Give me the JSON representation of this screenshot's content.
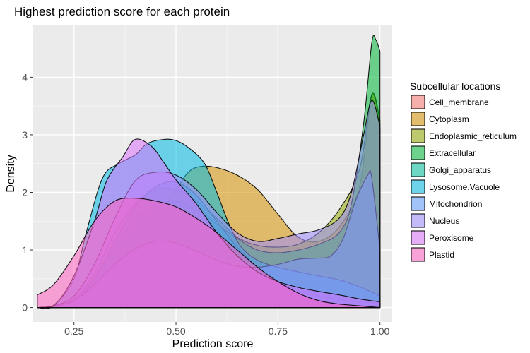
{
  "chart_data": {
    "type": "area",
    "subtype": "density",
    "title": "Highest prediction score for each protein",
    "xlabel": "Prediction score",
    "ylabel": "Density",
    "xlim": [
      0.15,
      1.03
    ],
    "ylim": [
      -0.25,
      4.9
    ],
    "x_ticks": [
      0.25,
      0.5,
      0.75,
      1.0
    ],
    "x_tick_labels": [
      "0.25",
      "0.50",
      "0.75",
      "1.00"
    ],
    "y_ticks": [
      0,
      1,
      2,
      3,
      4
    ],
    "y_tick_labels": [
      "0",
      "1",
      "2",
      "3",
      "4"
    ],
    "legend_title": "Subcellular locations",
    "legend_position": "right",
    "fill_opacity": 0.55,
    "series": [
      {
        "name": "Cell_membrane",
        "color": "#F8766D",
        "x": [
          0.16,
          0.2,
          0.25,
          0.3,
          0.35,
          0.4,
          0.45,
          0.5,
          0.55,
          0.6,
          0.65,
          0.7,
          0.75,
          0.8,
          0.85,
          0.9,
          0.95,
          1.0
        ],
        "y": [
          0.0,
          0.02,
          0.15,
          0.55,
          0.95,
          1.2,
          1.3,
          1.32,
          1.3,
          1.18,
          1.0,
          0.78,
          0.55,
          0.36,
          0.2,
          0.1,
          0.05,
          0.02
        ]
      },
      {
        "name": "Cytoplasm",
        "color": "#D39200",
        "x": [
          0.16,
          0.2,
          0.25,
          0.3,
          0.35,
          0.4,
          0.45,
          0.5,
          0.53,
          0.56,
          0.6,
          0.65,
          0.7,
          0.75,
          0.8,
          0.85,
          0.9,
          0.95,
          0.98,
          1.0
        ],
        "y": [
          0.0,
          0.02,
          0.1,
          0.3,
          0.65,
          1.1,
          1.55,
          2.05,
          2.35,
          2.45,
          2.43,
          2.3,
          2.05,
          1.62,
          1.22,
          1.15,
          1.4,
          2.1,
          3.68,
          3.1
        ]
      },
      {
        "name": "Endoplasmic_reticulum",
        "color": "#93AA00",
        "x": [
          0.16,
          0.2,
          0.25,
          0.3,
          0.35,
          0.4,
          0.45,
          0.5,
          0.55,
          0.6,
          0.65,
          0.7,
          0.75,
          0.8,
          0.85,
          0.9,
          0.95,
          0.98,
          1.0
        ],
        "y": [
          0.0,
          0.02,
          0.15,
          0.6,
          1.3,
          1.8,
          2.05,
          2.05,
          1.85,
          1.55,
          1.22,
          1.08,
          1.05,
          1.1,
          1.3,
          1.7,
          2.4,
          3.7,
          3.25
        ]
      },
      {
        "name": "Extracellular",
        "color": "#00BA38",
        "x": [
          0.16,
          0.2,
          0.25,
          0.3,
          0.35,
          0.4,
          0.45,
          0.5,
          0.55,
          0.6,
          0.65,
          0.7,
          0.75,
          0.8,
          0.85,
          0.9,
          0.93,
          0.96,
          0.98,
          0.99,
          1.0
        ],
        "y": [
          0.0,
          0.02,
          0.12,
          0.5,
          1.05,
          1.55,
          1.8,
          1.85,
          1.7,
          1.45,
          1.2,
          1.0,
          0.95,
          1.0,
          1.1,
          1.3,
          1.8,
          3.2,
          4.6,
          4.65,
          4.45
        ]
      },
      {
        "name": "Golgi_apparatus",
        "color": "#00C19F",
        "x": [
          0.16,
          0.2,
          0.25,
          0.3,
          0.35,
          0.4,
          0.45,
          0.5,
          0.55,
          0.6,
          0.65,
          0.7,
          0.75,
          0.8,
          0.85,
          0.9,
          0.95,
          1.0
        ],
        "y": [
          0.0,
          0.02,
          0.12,
          0.5,
          1.15,
          1.75,
          2.1,
          2.18,
          1.95,
          1.5,
          1.05,
          0.7,
          0.45,
          0.3,
          0.2,
          0.14,
          0.1,
          0.08
        ]
      },
      {
        "name": "Lysosome.Vacuole",
        "color": "#00B9E3",
        "x": [
          0.16,
          0.2,
          0.25,
          0.28,
          0.32,
          0.36,
          0.4,
          0.43,
          0.47,
          0.5,
          0.53,
          0.57,
          0.6,
          0.63,
          0.66,
          0.7,
          0.75,
          0.8,
          0.85,
          0.9,
          0.95,
          1.0
        ],
        "y": [
          0.0,
          0.04,
          0.5,
          1.3,
          2.25,
          2.5,
          2.65,
          2.85,
          2.92,
          2.9,
          2.78,
          2.5,
          2.0,
          1.45,
          1.05,
          0.82,
          0.7,
          0.62,
          0.55,
          0.48,
          0.36,
          0.2
        ]
      },
      {
        "name": "Mitochondrion",
        "color": "#619CFF",
        "x": [
          0.16,
          0.2,
          0.25,
          0.3,
          0.35,
          0.4,
          0.45,
          0.5,
          0.55,
          0.6,
          0.65,
          0.7,
          0.75,
          0.8,
          0.85,
          0.88,
          0.91,
          0.94,
          0.97,
          0.98,
          1.0
        ],
        "y": [
          0.0,
          0.02,
          0.12,
          0.4,
          0.75,
          1.02,
          1.15,
          1.12,
          0.98,
          0.82,
          0.72,
          0.7,
          0.75,
          0.84,
          0.86,
          0.9,
          1.2,
          1.85,
          2.3,
          2.25,
          1.0
        ]
      },
      {
        "name": "Nucleus",
        "color": "#9F8CFF",
        "x": [
          0.16,
          0.2,
          0.25,
          0.3,
          0.35,
          0.4,
          0.45,
          0.5,
          0.55,
          0.6,
          0.65,
          0.7,
          0.75,
          0.8,
          0.85,
          0.9,
          0.93,
          0.96,
          0.98,
          1.0
        ],
        "y": [
          0.0,
          0.03,
          0.2,
          0.75,
          1.55,
          2.2,
          2.35,
          2.3,
          2.05,
          1.65,
          1.3,
          1.15,
          1.2,
          1.28,
          1.35,
          1.55,
          2.0,
          3.0,
          3.6,
          3.15
        ]
      },
      {
        "name": "Peroxisome",
        "color": "#DB72FB",
        "x": [
          0.16,
          0.2,
          0.25,
          0.3,
          0.33,
          0.37,
          0.4,
          0.44,
          0.47,
          0.5,
          0.55,
          0.6,
          0.65,
          0.7,
          0.75,
          0.8,
          0.85,
          0.9,
          0.95,
          1.0
        ],
        "y": [
          0.0,
          0.03,
          0.55,
          1.5,
          2.2,
          2.62,
          2.92,
          2.8,
          2.52,
          2.22,
          1.8,
          1.3,
          0.9,
          0.62,
          0.45,
          0.35,
          0.28,
          0.22,
          0.15,
          0.1
        ]
      },
      {
        "name": "Plastid",
        "color": "#FF61C3",
        "x": [
          0.16,
          0.2,
          0.25,
          0.3,
          0.35,
          0.4,
          0.45,
          0.5,
          0.55,
          0.6,
          0.65,
          0.7,
          0.75,
          0.8,
          0.85,
          0.9,
          0.95,
          1.0
        ],
        "y": [
          0.22,
          0.4,
          0.9,
          1.5,
          1.85,
          1.9,
          1.85,
          1.75,
          1.55,
          1.3,
          1.0,
          0.7,
          0.45,
          0.25,
          0.12,
          0.06,
          0.03,
          0.0
        ]
      }
    ]
  }
}
